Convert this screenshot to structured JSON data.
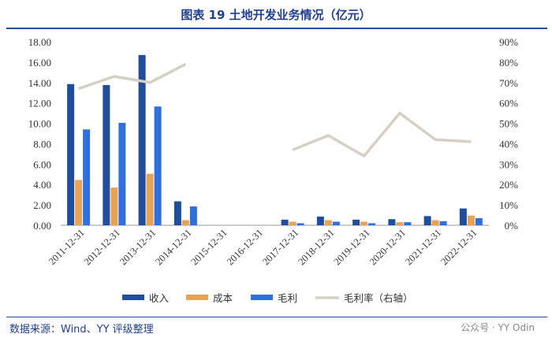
{
  "title": "图表 19 土地开发业务情况（亿元）",
  "source": "数据来源：Wind、YY 评级整理",
  "watermark": "公众号 · YY Odin",
  "chart_data": {
    "type": "bar",
    "categories": [
      "2011-12-31",
      "2012-12-31",
      "2013-12-31",
      "2014-12-31",
      "2015-12-31",
      "2016-12-31",
      "2017-12-31",
      "2018-12-31",
      "2019-12-31",
      "2020-12-31",
      "2021-12-31",
      "2022-12-31"
    ],
    "series": [
      {
        "name": "收入",
        "kind": "bar",
        "axis": "left",
        "color": "#1f4e9c",
        "values": [
          13.85,
          13.75,
          16.7,
          2.35,
          null,
          null,
          0.55,
          0.85,
          0.55,
          0.6,
          0.9,
          1.65
        ]
      },
      {
        "name": "成本",
        "kind": "bar",
        "axis": "left",
        "color": "#e8a253",
        "values": [
          4.45,
          3.7,
          5.05,
          0.5,
          null,
          null,
          0.35,
          0.5,
          0.35,
          0.3,
          0.5,
          0.95
        ]
      },
      {
        "name": "毛利",
        "kind": "bar",
        "axis": "left",
        "color": "#2f6fe0",
        "values": [
          9.4,
          10.05,
          11.65,
          1.85,
          null,
          null,
          0.2,
          0.35,
          0.2,
          0.3,
          0.4,
          0.7
        ]
      },
      {
        "name": "毛利率（右轴）",
        "kind": "line",
        "axis": "right",
        "color": "#d6d0c4",
        "values": [
          67,
          73,
          70,
          79,
          null,
          null,
          37,
          44,
          34,
          55,
          42,
          41
        ]
      }
    ],
    "ylim_left": [
      0,
      18
    ],
    "ylim_right": [
      0,
      90
    ],
    "left_ticks": [
      "0.00",
      "2.00",
      "4.00",
      "6.00",
      "8.00",
      "10.00",
      "12.00",
      "14.00",
      "16.00",
      "18.00"
    ],
    "right_ticks": [
      "0%",
      "10%",
      "20%",
      "30%",
      "40%",
      "50%",
      "60%",
      "70%",
      "80%",
      "90%"
    ],
    "legend_position": "bottom",
    "grid": false
  }
}
